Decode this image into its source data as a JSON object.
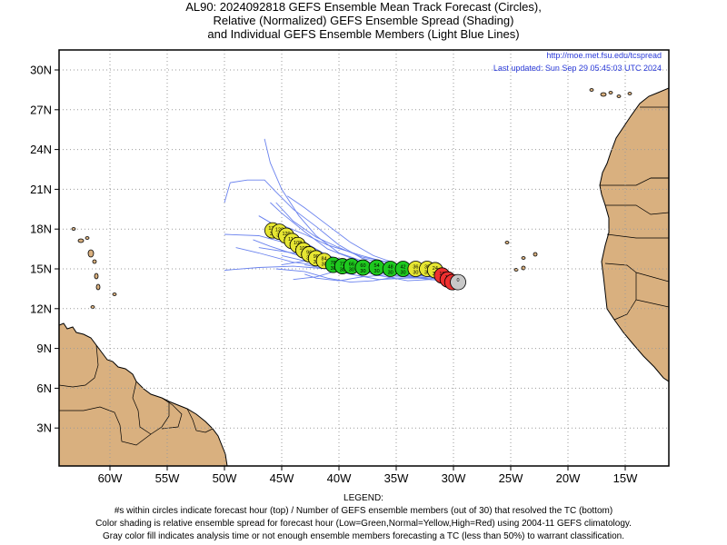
{
  "title": {
    "line1": "AL90: 2024092818 GEFS Ensemble Mean Track Forecast (Circles),",
    "line2": "Relative (Normalized) GEFS Ensemble Spread (Shading)",
    "line3": "and Individual GEFS Ensemble Members (Light Blue Lines)"
  },
  "source_url": "http://moe.met.fsu.edu/tcspread",
  "last_updated": "Last updated: Sun Sep 29 05:45:03 UTC 2024",
  "axes": {
    "lon_ticks": [
      {
        "value": -60,
        "label": "60W"
      },
      {
        "value": -55,
        "label": "55W"
      },
      {
        "value": -50,
        "label": "50W"
      },
      {
        "value": -45,
        "label": "45W"
      },
      {
        "value": -40,
        "label": "40W"
      },
      {
        "value": -35,
        "label": "35W"
      },
      {
        "value": -30,
        "label": "30W"
      },
      {
        "value": -25,
        "label": "25W"
      },
      {
        "value": -20,
        "label": "20W"
      },
      {
        "value": -15,
        "label": "15W"
      }
    ],
    "lat_ticks": [
      {
        "value": 30,
        "label": "30N"
      },
      {
        "value": 27,
        "label": "27N"
      },
      {
        "value": 24,
        "label": "24N"
      },
      {
        "value": 21,
        "label": "21N"
      },
      {
        "value": 18,
        "label": "18N"
      },
      {
        "value": 15,
        "label": "15N"
      },
      {
        "value": 12,
        "label": "12N"
      },
      {
        "value": 9,
        "label": "9N"
      },
      {
        "value": 6,
        "label": "6N"
      },
      {
        "value": 3,
        "label": "3N"
      }
    ],
    "lon_range": [
      -65,
      -11.5
    ],
    "lat_range": [
      0.5,
      32
    ]
  },
  "colors": {
    "land": "#d9b07f",
    "ocean": "#ffffff",
    "member_tracks": "#6a82ee",
    "grid": "#9a9a9a",
    "low_spread": "#1ec81e",
    "normal_spread": "#e6e632",
    "high_spread": "#ee3030",
    "analysis": "#c8c8c8",
    "annotation": "#2a3ad8"
  },
  "chart_data": {
    "type": "scatter",
    "mean_track": [
      {
        "hour": "0",
        "members": "",
        "lon": -29.6,
        "lat": 14.0,
        "spread": "gray"
      },
      {
        "hour": "6",
        "members": "",
        "lon": -30.1,
        "lat": 14.0,
        "spread": "high"
      },
      {
        "hour": "12",
        "members": "",
        "lon": -30.5,
        "lat": 14.2,
        "spread": "high"
      },
      {
        "hour": "18",
        "members": "",
        "lon": -31.0,
        "lat": 14.5,
        "spread": "high"
      },
      {
        "hour": "24",
        "members": "30",
        "lon": -31.6,
        "lat": 14.9,
        "spread": "normal"
      },
      {
        "hour": "30",
        "members": "30",
        "lon": -32.3,
        "lat": 15.0,
        "spread": "normal"
      },
      {
        "hour": "36",
        "members": "30",
        "lon": -33.3,
        "lat": 15.0,
        "spread": "normal"
      },
      {
        "hour": "42",
        "members": "30",
        "lon": -34.4,
        "lat": 15.0,
        "spread": "low"
      },
      {
        "hour": "48",
        "members": "30",
        "lon": -35.5,
        "lat": 15.0,
        "spread": "low"
      },
      {
        "hour": "54",
        "members": "30",
        "lon": -36.7,
        "lat": 15.1,
        "spread": "low"
      },
      {
        "hour": "60",
        "members": "30",
        "lon": -37.9,
        "lat": 15.1,
        "spread": "low"
      },
      {
        "hour": "66",
        "members": "30",
        "lon": -38.9,
        "lat": 15.2,
        "spread": "low"
      },
      {
        "hour": "72",
        "members": "30",
        "lon": -39.7,
        "lat": 15.2,
        "spread": "low"
      },
      {
        "hour": "78",
        "members": "30",
        "lon": -40.5,
        "lat": 15.3,
        "spread": "low"
      },
      {
        "hour": "84",
        "members": "30",
        "lon": -41.3,
        "lat": 15.6,
        "spread": "normal"
      },
      {
        "hour": "90",
        "members": "30",
        "lon": -42.0,
        "lat": 15.8,
        "spread": "normal"
      },
      {
        "hour": "96",
        "members": "30",
        "lon": -42.6,
        "lat": 16.1,
        "spread": "normal"
      },
      {
        "hour": "102",
        "members": "30",
        "lon": -43.1,
        "lat": 16.4,
        "spread": "normal"
      },
      {
        "hour": "108",
        "members": "30",
        "lon": -43.6,
        "lat": 16.8,
        "spread": "normal"
      },
      {
        "hour": "114",
        "members": "30",
        "lon": -44.1,
        "lat": 17.1,
        "spread": "normal"
      },
      {
        "hour": "120",
        "members": "30",
        "lon": -44.6,
        "lat": 17.5,
        "spread": "normal"
      },
      {
        "hour": "126",
        "members": "30",
        "lon": -45.2,
        "lat": 17.8,
        "spread": "normal"
      },
      {
        "hour": "132",
        "members": "30",
        "lon": -45.8,
        "lat": 17.9,
        "spread": "normal"
      }
    ],
    "member_tracks": [
      [
        [
          -29.6,
          14.0
        ],
        [
          -32,
          14.6
        ],
        [
          -35,
          15.0
        ],
        [
          -38,
          15.3
        ],
        [
          -41,
          15.7
        ],
        [
          -43,
          16.4
        ],
        [
          -44.5,
          17.2
        ],
        [
          -45.5,
          18.0
        ]
      ],
      [
        [
          -29.6,
          14.0
        ],
        [
          -32,
          14.8
        ],
        [
          -35,
          15.2
        ],
        [
          -38,
          15.6
        ],
        [
          -40,
          16.2
        ],
        [
          -42,
          17.5
        ],
        [
          -43.5,
          19.0
        ],
        [
          -45,
          21.0
        ],
        [
          -46,
          23.0
        ],
        [
          -46.5,
          24.8
        ]
      ],
      [
        [
          -29.6,
          14.0
        ],
        [
          -32,
          14.9
        ],
        [
          -35,
          15.4
        ],
        [
          -37,
          16.0
        ],
        [
          -39,
          17.0
        ],
        [
          -41,
          18.3
        ],
        [
          -43,
          19.6
        ],
        [
          -44.5,
          20.5
        ]
      ],
      [
        [
          -29.6,
          14.0
        ],
        [
          -32,
          14.7
        ],
        [
          -35,
          15.2
        ],
        [
          -38,
          15.8
        ],
        [
          -40,
          16.8
        ],
        [
          -42,
          18.2
        ],
        [
          -44,
          19.5
        ],
        [
          -45.5,
          20.8
        ],
        [
          -46.5,
          21.7
        ],
        [
          -48,
          21.7
        ],
        [
          -49.5,
          21.5
        ],
        [
          -50,
          20.0
        ]
      ],
      [
        [
          -29.6,
          14.0
        ],
        [
          -32,
          14.6
        ],
        [
          -35,
          15.0
        ],
        [
          -38,
          15.4
        ],
        [
          -41,
          15.9
        ],
        [
          -43,
          16.8
        ],
        [
          -45,
          18.0
        ],
        [
          -47,
          19.0
        ]
      ],
      [
        [
          -29.6,
          14.0
        ],
        [
          -32,
          14.5
        ],
        [
          -35,
          14.7
        ],
        [
          -38,
          15.0
        ],
        [
          -41,
          15.6
        ],
        [
          -44,
          16.8
        ],
        [
          -47,
          17.5
        ],
        [
          -50,
          17.6
        ]
      ],
      [
        [
          -29.6,
          14.0
        ],
        [
          -32,
          14.2
        ],
        [
          -35,
          14.6
        ],
        [
          -38,
          14.8
        ],
        [
          -41,
          15.0
        ],
        [
          -44,
          15.2
        ],
        [
          -47,
          15.1
        ],
        [
          -50,
          14.9
        ]
      ],
      [
        [
          -29.6,
          14.0
        ],
        [
          -32,
          14.3
        ],
        [
          -35,
          14.4
        ],
        [
          -37,
          14.1
        ],
        [
          -39,
          14.0
        ],
        [
          -41,
          14.3
        ],
        [
          -43,
          14.8
        ],
        [
          -45.5,
          15.0
        ]
      ],
      [
        [
          -29.6,
          14.0
        ],
        [
          -32,
          14.4
        ],
        [
          -35,
          14.8
        ],
        [
          -38,
          15.3
        ],
        [
          -41,
          16.0
        ],
        [
          -43,
          17.0
        ],
        [
          -45,
          18.0
        ],
        [
          -47,
          19.0
        ]
      ],
      [
        [
          -29.6,
          14.0
        ],
        [
          -32,
          14.2
        ],
        [
          -34,
          14.1
        ],
        [
          -36.5,
          14.5
        ],
        [
          -39,
          15.0
        ],
        [
          -41,
          15.4
        ],
        [
          -43,
          15.6
        ],
        [
          -45,
          15.3
        ]
      ],
      [
        [
          -29.6,
          14.0
        ],
        [
          -32,
          14.3
        ],
        [
          -35,
          14.6
        ],
        [
          -38,
          14.4
        ],
        [
          -40,
          14.1
        ],
        [
          -42,
          14.3
        ],
        [
          -43,
          14.6
        ]
      ],
      [
        [
          -29.6,
          14.0
        ],
        [
          -32,
          14.5
        ],
        [
          -35,
          14.9
        ],
        [
          -38,
          15.5
        ],
        [
          -41,
          16.5
        ],
        [
          -43,
          17.8
        ],
        [
          -45,
          19.2
        ],
        [
          -46,
          20.0
        ]
      ],
      [
        [
          -29.6,
          14.0
        ],
        [
          -32,
          14.8
        ],
        [
          -35,
          15.4
        ],
        [
          -38,
          15.9
        ],
        [
          -40,
          16.6
        ],
        [
          -42,
          17.4
        ],
        [
          -44,
          18.6
        ],
        [
          -45.5,
          20.0
        ]
      ],
      [
        [
          -29.6,
          14.0
        ],
        [
          -32,
          14.6
        ],
        [
          -35,
          15.1
        ],
        [
          -38,
          15.5
        ],
        [
          -41,
          15.8
        ],
        [
          -44,
          16.2
        ],
        [
          -47,
          16.6
        ]
      ],
      [
        [
          -29.6,
          14.0
        ],
        [
          -32,
          14.4
        ],
        [
          -35,
          14.9
        ],
        [
          -38,
          15.2
        ],
        [
          -41,
          15.4
        ],
        [
          -43,
          15.6
        ],
        [
          -45,
          16.0
        ]
      ],
      [
        [
          -29.6,
          14.0
        ],
        [
          -32,
          14.2
        ],
        [
          -35,
          14.5
        ],
        [
          -38,
          14.9
        ],
        [
          -41,
          15.2
        ],
        [
          -44,
          15.5
        ],
        [
          -47,
          16.2
        ],
        [
          -49,
          16.6
        ]
      ],
      [
        [
          -29.6,
          14.0
        ],
        [
          -31.5,
          14.3
        ],
        [
          -34,
          14.3
        ],
        [
          -36.5,
          14.2
        ],
        [
          -39,
          14.6
        ],
        [
          -41,
          15.0
        ],
        [
          -43,
          15.3
        ]
      ],
      [
        [
          -29.6,
          14.0
        ],
        [
          -32,
          14.7
        ],
        [
          -35,
          15.3
        ],
        [
          -38,
          16.0
        ],
        [
          -41,
          16.8
        ],
        [
          -43,
          17.6
        ],
        [
          -45,
          18.3
        ]
      ],
      [
        [
          -29.6,
          14.0
        ],
        [
          -32,
          14.5
        ],
        [
          -35,
          15.0
        ],
        [
          -38,
          15.3
        ],
        [
          -41,
          15.5
        ],
        [
          -43.5,
          16.0
        ],
        [
          -46,
          16.7
        ],
        [
          -47.5,
          17.2
        ]
      ],
      [
        [
          -29.6,
          14.0
        ],
        [
          -32,
          14.4
        ],
        [
          -35,
          14.7
        ],
        [
          -38,
          14.8
        ],
        [
          -40,
          14.9
        ],
        [
          -42,
          14.4
        ],
        [
          -44,
          14.2
        ]
      ]
    ]
  },
  "legend": {
    "heading": "LEGEND:",
    "line1": "#s within circles indicate forecast hour (top) / Number of GEFS ensemble members (out of 30) that resolved the TC (bottom)",
    "line2": "Color shading is relative ensemble spread for forecast hour (Low=Green,Normal=Yellow,High=Red) using 2004-11 GEFS climatology.",
    "line3": "Gray color fill indicates analysis time or not enough ensemble members forecasting a TC (less than 50%) to warrant classification."
  }
}
